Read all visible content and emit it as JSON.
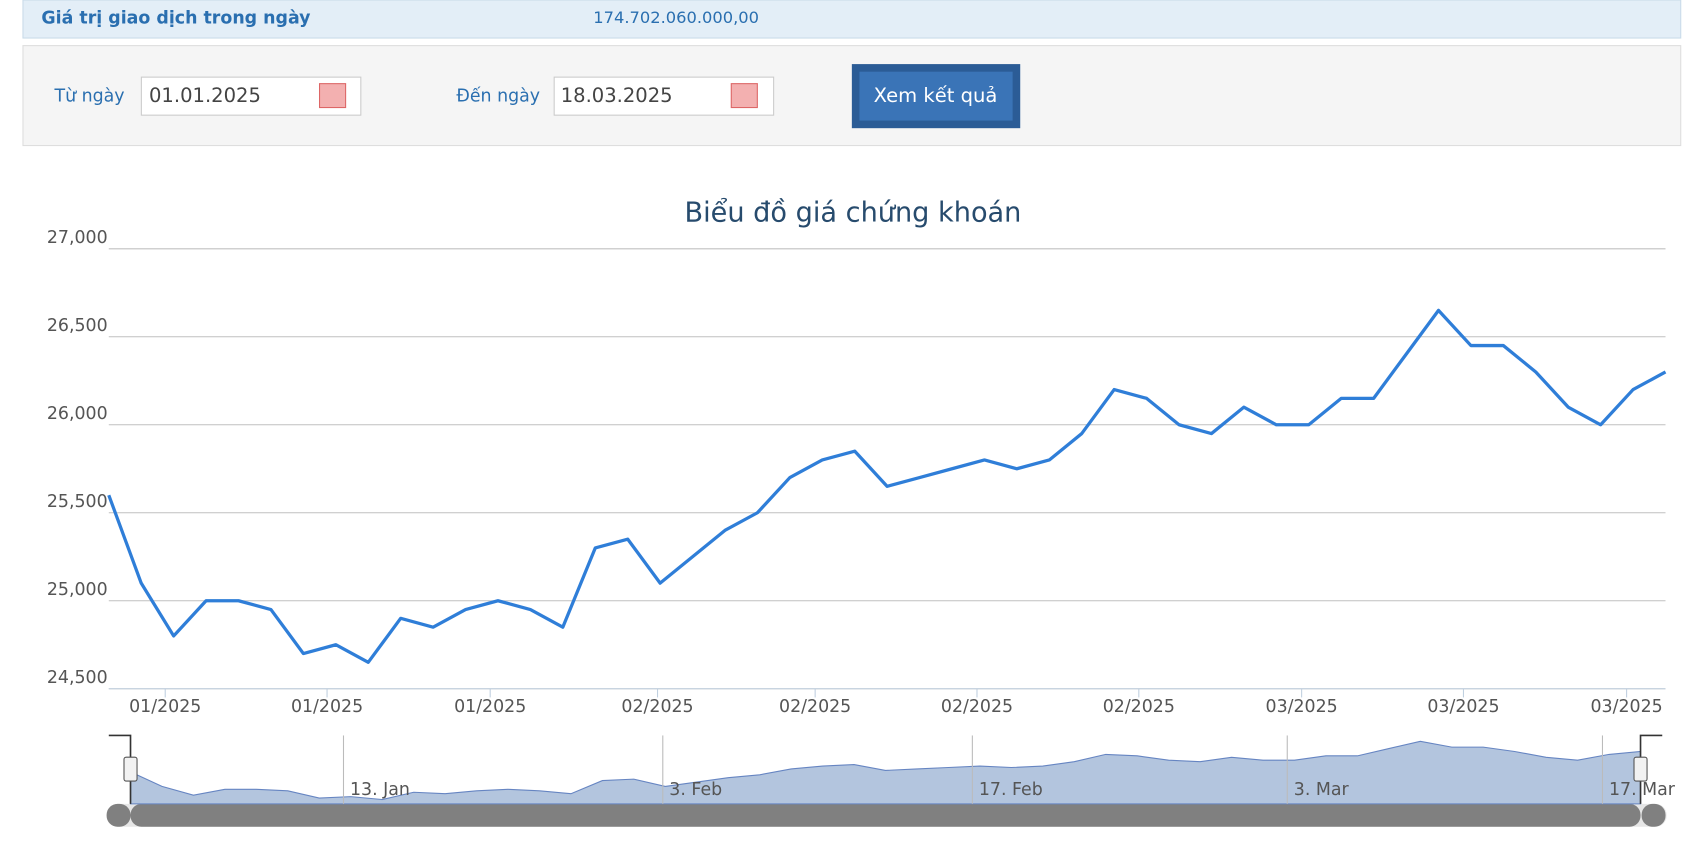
{
  "info": {
    "label": "Giá trị giao dịch trong ngày",
    "value": "174.702.060.000,00"
  },
  "form": {
    "from_label": "Từ ngày",
    "from_value": "01.01.2025",
    "to_label": "Đến ngày",
    "to_value": "18.03.2025",
    "button": "Xem kết quả"
  },
  "chart_data": {
    "type": "line",
    "title": "Biểu đồ giá chứng khoán",
    "series": [
      {
        "color": "#2f7ed8",
        "values": [
          25600,
          25100,
          24800,
          25000,
          25000,
          24950,
          24700,
          24750,
          24650,
          24900,
          24850,
          24950,
          25000,
          24950,
          24850,
          25300,
          25350,
          25100,
          25250,
          25400,
          25500,
          25700,
          25800,
          25850,
          25650,
          25700,
          25750,
          25800,
          25750,
          25800,
          25950,
          26200,
          26150,
          26000,
          25950,
          26100,
          26000,
          26000,
          26150,
          26150,
          26400,
          26650,
          26450,
          26450,
          26300,
          26100,
          26000,
          26200,
          26300
        ]
      }
    ],
    "ylim": [
      24500,
      27000
    ],
    "yticks": [
      {
        "value": 24500,
        "label": "24,500"
      },
      {
        "value": 25000,
        "label": "25,000"
      },
      {
        "value": 25500,
        "label": "25,500"
      },
      {
        "value": 26000,
        "label": "26,000"
      },
      {
        "value": 26500,
        "label": "26,500"
      },
      {
        "value": 27000,
        "label": "27,000"
      }
    ],
    "xticks": [
      {
        "value": 1.74,
        "label": "01/2025"
      },
      {
        "value": 6.73,
        "label": "01/2025"
      },
      {
        "value": 11.76,
        "label": "01/2025"
      },
      {
        "value": 16.92,
        "label": "02/2025"
      },
      {
        "value": 21.78,
        "label": "02/2025"
      },
      {
        "value": 26.77,
        "label": "02/2025"
      },
      {
        "value": 31.76,
        "label": "02/2025"
      },
      {
        "value": 36.78,
        "label": "03/2025"
      },
      {
        "value": 41.77,
        "label": "03/2025"
      },
      {
        "value": 46.8,
        "label": "03/2025"
      }
    ],
    "grid": true,
    "navigator_xticks": [
      {
        "value": 6.77,
        "label": "13. Jan"
      },
      {
        "value": 16.92,
        "label": "3. Feb"
      },
      {
        "value": 26.76,
        "label": "17. Feb"
      },
      {
        "value": 36.77,
        "label": "3. Mar"
      },
      {
        "value": 46.79,
        "label": "17. Mar"
      }
    ]
  }
}
